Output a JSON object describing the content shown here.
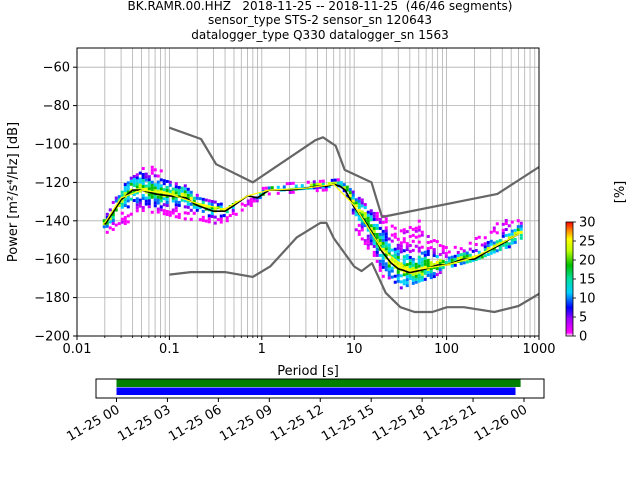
{
  "title": {
    "line1": "BK.RAMR.00.HHZ   2018-11-25 -- 2018-11-25  (46/46 segments)",
    "line2": "sensor_type STS-2 sensor_sn 120643",
    "line3": "datalogger_type Q330 datalogger_sn 1563"
  },
  "colorbar": {
    "label": "[%]",
    "ticks": [
      "0",
      "5",
      "10",
      "15",
      "20",
      "25",
      "30"
    ],
    "range": [
      0,
      30
    ]
  },
  "timeline": {
    "tick_labels": [
      "11-25 00",
      "11-25 03",
      "11-25 06",
      "11-25 09",
      "11-25 12",
      "11-25 15",
      "11-25 18",
      "11-25 21",
      "11-26 00"
    ],
    "bars": [
      {
        "color": "#008000",
        "start_hour": 0.0,
        "end_hour": 23.8
      },
      {
        "color": "#0000ff",
        "start_hour": 0.0,
        "end_hour": 23.5
      }
    ]
  },
  "chart_data": {
    "type": "heatmap",
    "title": "BK.RAMR.00.HHZ   2018-11-25 -- 2018-11-25  (46/46 segments)",
    "xlabel": "Period [s]",
    "ylabel": "Power [m²/s⁴/Hz] [dB]",
    "xscale": "log",
    "xlim": [
      0.01,
      1000
    ],
    "ylim": [
      -200,
      -50
    ],
    "xtick_labels": [
      "0.01",
      "0.1",
      "1",
      "10",
      "100",
      "1000"
    ],
    "ytick_labels": [
      "−60",
      "−80",
      "−100",
      "−120",
      "−140",
      "−160",
      "−180",
      "−200"
    ],
    "grid": true,
    "series": [
      {
        "name": "New High Noise Model",
        "color": "#666666",
        "x": [
          0.1,
          0.22,
          0.32,
          0.8,
          3.8,
          4.6,
          6.3,
          7.9,
          15.4,
          20,
          354.8,
          1000
        ],
        "y": [
          -91.5,
          -97.4,
          -110.5,
          -120,
          -98,
          -96.5,
          -101,
          -113.5,
          -120,
          -138,
          -126,
          -112
        ]
      },
      {
        "name": "New Low Noise Model",
        "color": "#666666",
        "x": [
          0.1,
          0.17,
          0.4,
          0.8,
          1.24,
          2.4,
          4.3,
          5,
          6,
          10,
          12,
          15.6,
          21.9,
          31.6,
          45,
          70,
          101,
          154,
          328,
          600,
          1000
        ],
        "y": [
          -168,
          -166.7,
          -166.7,
          -169.2,
          -163.7,
          -148.6,
          -141.1,
          -141.1,
          -149,
          -163.8,
          -166.2,
          -162.1,
          -177.5,
          -185,
          -187.5,
          -187.5,
          -185,
          -185,
          -187.5,
          -184.4,
          -178
        ]
      },
      {
        "name": "Mode",
        "color": "#000000",
        "x": [
          0.02,
          0.025,
          0.03,
          0.04,
          0.05,
          0.07,
          0.1,
          0.15,
          0.2,
          0.3,
          0.4,
          0.5,
          0.7,
          0.9,
          1.2,
          2,
          3,
          4,
          5,
          6,
          7,
          8,
          10,
          13,
          16,
          20,
          25,
          30,
          35,
          40,
          50,
          60,
          80,
          100,
          150,
          200,
          300,
          400,
          500,
          600
        ],
        "y": [
          -142,
          -135,
          -129,
          -124,
          -124,
          -126,
          -127,
          -128,
          -132,
          -135,
          -135,
          -132,
          -127,
          -128,
          -124,
          -124,
          -123,
          -122,
          -122,
          -121,
          -122,
          -124,
          -133,
          -140,
          -147,
          -156,
          -162,
          -165,
          -166,
          -167,
          -166,
          -165,
          -163,
          -163,
          -160,
          -160,
          -155,
          -152,
          -149,
          -147
        ]
      },
      {
        "name": "Mean",
        "color": "#ffff00",
        "x": [
          0.02,
          0.03,
          0.05,
          0.1,
          0.2,
          0.4,
          0.7,
          1.2,
          3,
          6,
          10,
          20,
          40,
          100,
          200,
          600
        ],
        "y": [
          -141,
          -128,
          -124,
          -126,
          -131,
          -134,
          -127,
          -124,
          -123,
          -121,
          -132,
          -155,
          -166,
          -163,
          -159,
          -147
        ]
      }
    ],
    "heatmap_description_envelope": {
      "x": [
        0.02,
        0.03,
        0.05,
        0.07,
        0.1,
        0.15,
        0.2,
        0.3,
        0.4,
        0.6,
        0.8,
        1,
        2,
        4,
        7,
        10,
        15,
        20,
        30,
        50,
        70,
        100,
        200,
        400,
        600
      ],
      "upper": [
        -137,
        -122,
        -112,
        -113,
        -118,
        -122,
        -128,
        -130,
        -132,
        -130,
        -128,
        -123,
        -121,
        -120,
        -119,
        -126,
        -133,
        -138,
        -145,
        -140,
        -150,
        -155,
        -150,
        -140,
        -138
      ],
      "lower": [
        -147,
        -143,
        -137,
        -136,
        -138,
        -140,
        -140,
        -142,
        -141,
        -135,
        -132,
        -127,
        -126,
        -125,
        -124,
        -145,
        -158,
        -170,
        -176,
        -172,
        -170,
        -165,
        -161,
        -155,
        -153
      ]
    }
  }
}
